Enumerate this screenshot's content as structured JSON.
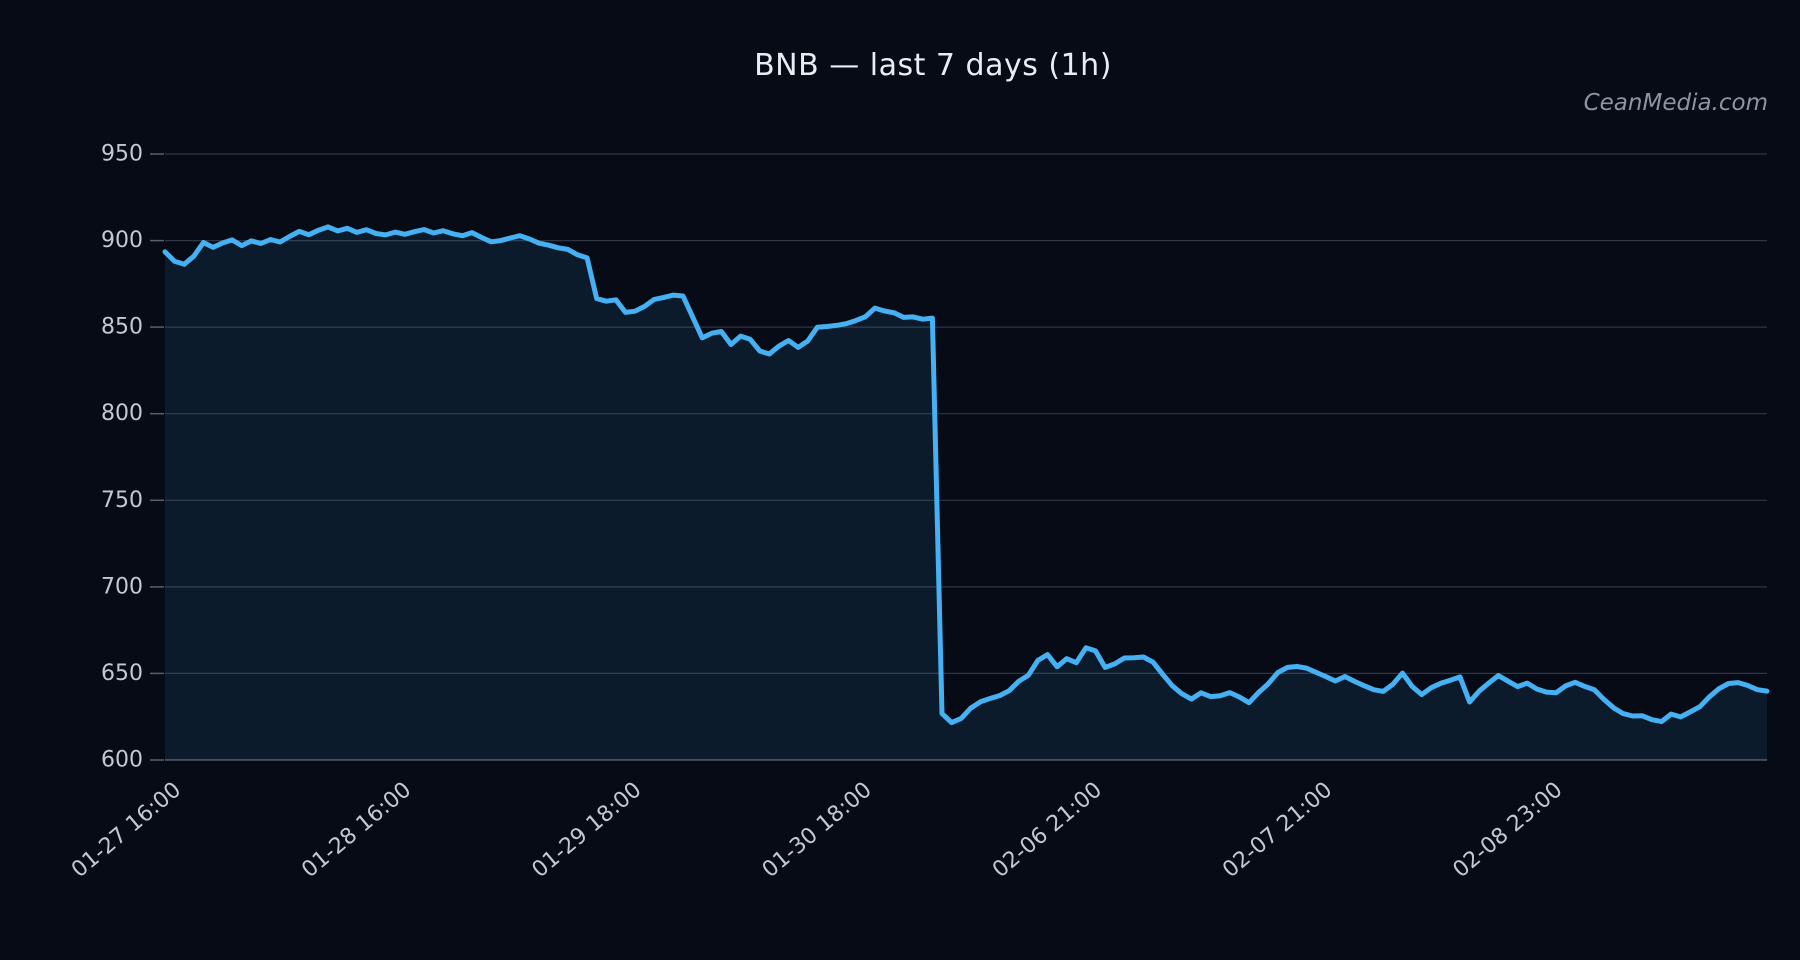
{
  "chart_data": {
    "type": "line",
    "title": "BNB — last 7 days (1h)",
    "watermark": "CeanMedia.com",
    "symbol": "BNB",
    "timeframe": "1h",
    "range_label": "last 7 days",
    "legend": "none",
    "grid": true,
    "background_color": "#060b16",
    "line_color": "#45b0f2",
    "fill_color": "rgba(69,176,242,0.10)",
    "line_width": 5,
    "ylim": [
      600,
      950
    ],
    "y_ticks": [
      600,
      650,
      700,
      750,
      800,
      850,
      900,
      950
    ],
    "x_tick_labels": [
      "01-27 16:00",
      "01-28 16:00",
      "01-29 18:00",
      "01-30 18:00",
      "02-06 21:00",
      "02-07 21:00",
      "02-08 23:00"
    ],
    "x_tick_indices": [
      2,
      26,
      50,
      74,
      98,
      122,
      146
    ],
    "values": [
      893.5,
      888.0,
      886.3,
      891.0,
      898.9,
      896.1,
      898.6,
      900.4,
      897.1,
      899.8,
      898.3,
      900.6,
      899.2,
      902.4,
      905.3,
      903.4,
      906.0,
      907.9,
      905.6,
      907.1,
      904.7,
      906.3,
      904.1,
      903.3,
      904.9,
      903.6,
      905.1,
      906.4,
      904.4,
      905.7,
      903.9,
      902.8,
      904.6,
      901.8,
      899.3,
      900.0,
      901.5,
      902.8,
      900.9,
      898.5,
      897.3,
      895.8,
      894.9,
      891.8,
      890.0,
      866.5,
      865.0,
      865.8,
      858.5,
      859.2,
      862.0,
      866.0,
      867.2,
      868.5,
      868.0,
      856.0,
      843.8,
      846.5,
      847.5,
      840.0,
      844.8,
      843.0,
      836.2,
      834.5,
      839.0,
      842.3,
      838.3,
      842.0,
      849.9,
      850.4,
      851.0,
      852.0,
      853.8,
      856.0,
      861.0,
      859.3,
      858.3,
      855.6,
      855.9,
      854.6,
      855.2,
      626.8,
      621.6,
      624.0,
      630.0,
      633.6,
      635.5,
      637.2,
      640.0,
      645.5,
      649.0,
      657.5,
      660.9,
      653.8,
      658.5,
      656.2,
      664.8,
      663.0,
      653.5,
      655.5,
      658.9,
      659.0,
      659.5,
      656.5,
      649.5,
      642.9,
      638.3,
      635.2,
      638.8,
      636.6,
      637.1,
      638.9,
      636.4,
      633.1,
      639.0,
      644.0,
      650.5,
      653.5,
      654.0,
      653.1,
      650.6,
      648.2,
      645.6,
      648.2,
      645.4,
      642.9,
      640.6,
      639.6,
      643.8,
      650.2,
      642.5,
      637.8,
      641.8,
      644.3,
      646.1,
      648.0,
      633.5,
      639.8,
      644.4,
      648.8,
      645.5,
      642.4,
      644.4,
      641.0,
      639.2,
      638.8,
      642.8,
      644.9,
      642.5,
      640.6,
      635.0,
      630.2,
      626.8,
      625.4,
      625.5,
      623.3,
      622.2,
      626.5,
      624.9,
      627.8,
      630.8,
      636.5,
      641.2,
      644.2,
      644.7,
      643.0,
      640.6,
      639.8
    ]
  }
}
